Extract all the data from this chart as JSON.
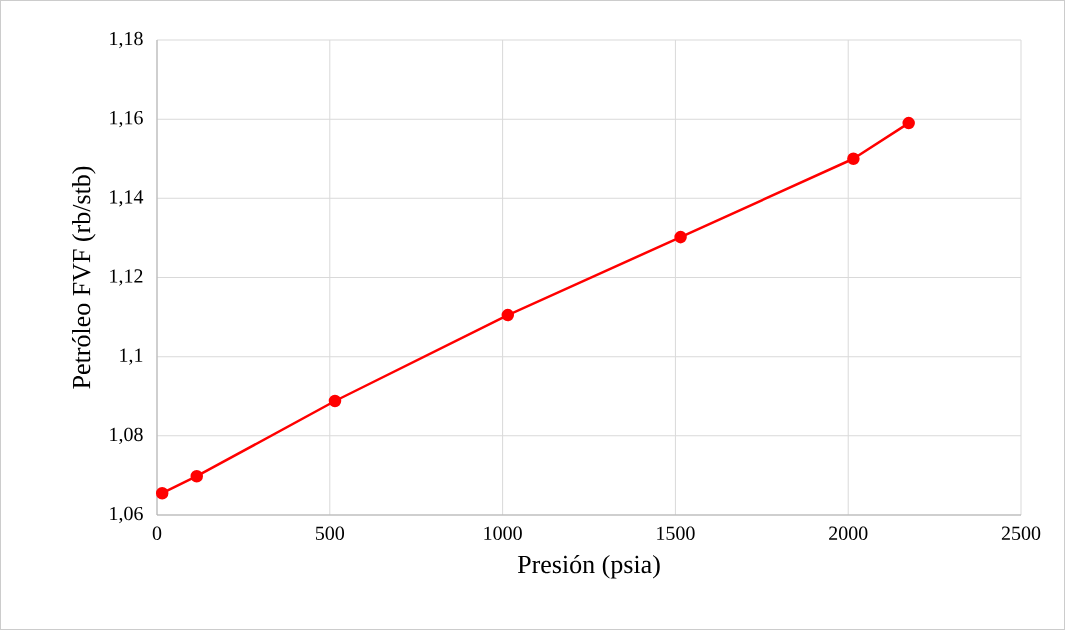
{
  "chart_data": {
    "type": "line",
    "xlabel": "Presión (psia)",
    "ylabel": "Petróleo FVF (rb/stb)",
    "x": [
      15,
      115,
      515,
      1015,
      1515,
      2015,
      2175
    ],
    "series": [
      {
        "color": "#ff0000",
        "values": [
          1.0655,
          1.0698,
          1.0888,
          1.1105,
          1.1302,
          1.15,
          1.159
        ]
      }
    ],
    "xlim": [
      0,
      2500
    ],
    "xticks": [
      0,
      500,
      1000,
      1500,
      2000,
      2500
    ],
    "ylim": [
      1.06,
      1.18
    ],
    "yticks": [
      {
        "value": 1.06,
        "label": "1,06"
      },
      {
        "value": 1.08,
        "label": "1,08"
      },
      {
        "value": 1.1,
        "label": "1,1"
      },
      {
        "value": 1.12,
        "label": "1,12"
      },
      {
        "value": 1.14,
        "label": "1,14"
      },
      {
        "value": 1.16,
        "label": "1,16"
      },
      {
        "value": 1.18,
        "label": "1,18"
      }
    ],
    "grid": true,
    "marker": "circle",
    "line_style": "solid"
  }
}
